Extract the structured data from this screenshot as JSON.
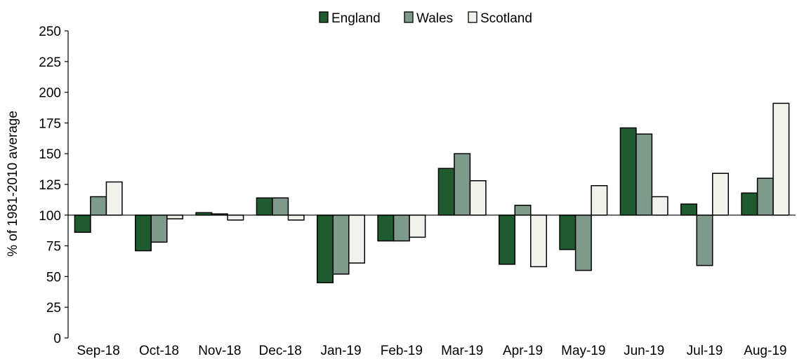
{
  "chart_data": {
    "type": "bar",
    "ylabel": "% of 1981-2010 average",
    "xlabel": "",
    "ylim": [
      0,
      250
    ],
    "yticks": [
      0,
      25,
      50,
      75,
      100,
      125,
      150,
      175,
      200,
      225,
      250
    ],
    "baseline": 100,
    "grid": false,
    "legend_position": "top",
    "categories": [
      "Sep-18",
      "Oct-18",
      "Nov-18",
      "Dec-18",
      "Jan-19",
      "Feb-19",
      "Mar-19",
      "Apr-19",
      "May-19",
      "Jun-19",
      "Jul-19",
      "Aug-19"
    ],
    "series": [
      {
        "name": "England",
        "color": "#1e5c30",
        "values": [
          86,
          71,
          102,
          114,
          45,
          79,
          138,
          60,
          72,
          171,
          109,
          118
        ]
      },
      {
        "name": "Wales",
        "color": "#7d9a8b",
        "values": [
          115,
          78,
          101,
          114,
          52,
          79,
          150,
          108,
          55,
          166,
          59,
          130
        ]
      },
      {
        "name": "Scotland",
        "color": "#f1f2ec",
        "values": [
          127,
          97,
          96,
          96,
          61,
          82,
          128,
          58,
          124,
          115,
          134,
          191
        ]
      }
    ]
  }
}
